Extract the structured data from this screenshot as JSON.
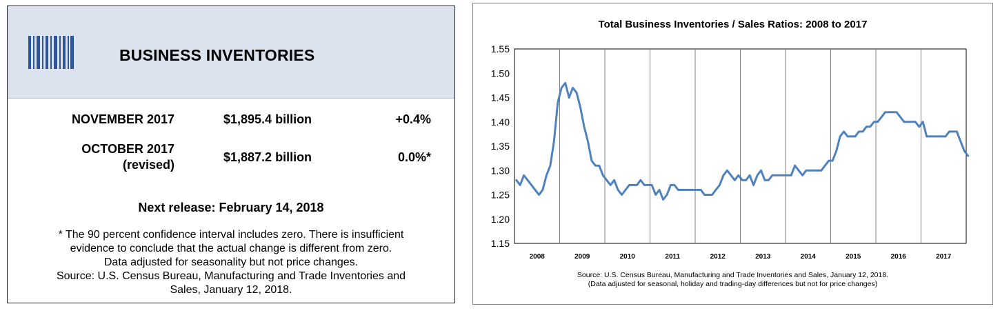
{
  "left_panel": {
    "title": "BUSINESS INVENTORIES",
    "rows": [
      {
        "label_lines": [
          "NOVEMBER 2017"
        ],
        "value": "$1,895.4 billion",
        "change": "+0.4%"
      },
      {
        "label_lines": [
          "OCTOBER 2017",
          "(revised)"
        ],
        "value": "$1,887.2 billion",
        "change": "0.0%*"
      }
    ],
    "next_release": "Next release: February 14, 2018",
    "note_lines": [
      "* The 90 percent confidence interval includes zero. There is insufficient",
      "evidence to conclude that the actual change is different from zero.",
      "Data adjusted for seasonality but not price changes.",
      "Source: U.S. Census Bureau, Manufacturing and Trade Inventories and",
      "Sales, January 12, 2018."
    ],
    "header_color": "#dbe3ee",
    "icon": "barcode-icon"
  },
  "chart_data": {
    "type": "line",
    "title": "Total Business Inventories / Sales Ratios: 2008 to 2017",
    "xlabel": "",
    "ylabel": "",
    "ylim": [
      1.15,
      1.55
    ],
    "yticks": [
      "1.15",
      "1.20",
      "1.25",
      "1.30",
      "1.35",
      "1.40",
      "1.45",
      "1.50",
      "1.55"
    ],
    "xticks": [
      "2008",
      "2009",
      "2010",
      "2011",
      "2012",
      "2013",
      "2014",
      "2015",
      "2016",
      "2017"
    ],
    "grid": "vertical year separators",
    "line_color": "#4f81bd",
    "series": [
      {
        "x_start": "2008-01",
        "frequency": "monthly",
        "values": [
          1.28,
          1.27,
          1.29,
          1.28,
          1.27,
          1.26,
          1.25,
          1.26,
          1.29,
          1.31,
          1.36,
          1.44,
          1.47,
          1.48,
          1.45,
          1.47,
          1.46,
          1.43,
          1.39,
          1.36,
          1.32,
          1.31,
          1.31,
          1.29,
          1.28,
          1.27,
          1.28,
          1.26,
          1.25,
          1.26,
          1.27,
          1.27,
          1.27,
          1.28,
          1.27,
          1.27,
          1.27,
          1.25,
          1.26,
          1.24,
          1.25,
          1.27,
          1.27,
          1.26,
          1.26,
          1.26,
          1.26,
          1.26,
          1.26,
          1.26,
          1.25,
          1.25,
          1.25,
          1.26,
          1.27,
          1.29,
          1.3,
          1.29,
          1.28,
          1.29,
          1.28,
          1.28,
          1.29,
          1.27,
          1.29,
          1.3,
          1.28,
          1.28,
          1.29,
          1.29,
          1.29,
          1.29,
          1.29,
          1.29,
          1.31,
          1.3,
          1.29,
          1.3,
          1.3,
          1.3,
          1.3,
          1.3,
          1.31,
          1.32,
          1.32,
          1.34,
          1.37,
          1.38,
          1.37,
          1.37,
          1.37,
          1.38,
          1.38,
          1.39,
          1.39,
          1.4,
          1.4,
          1.41,
          1.42,
          1.42,
          1.42,
          1.42,
          1.41,
          1.4,
          1.4,
          1.4,
          1.4,
          1.39,
          1.4,
          1.37,
          1.37,
          1.37,
          1.37,
          1.37,
          1.37,
          1.38,
          1.38,
          1.38,
          1.36,
          1.34,
          1.33
        ]
      }
    ]
  },
  "source_lines": [
    "Source: U.S. Census Bureau, Manufacturing and Trade Inventories and Sales, January 12, 2018.",
    "(Data adjusted for seasonal, holiday and trading-day differences but not for price changes)"
  ]
}
